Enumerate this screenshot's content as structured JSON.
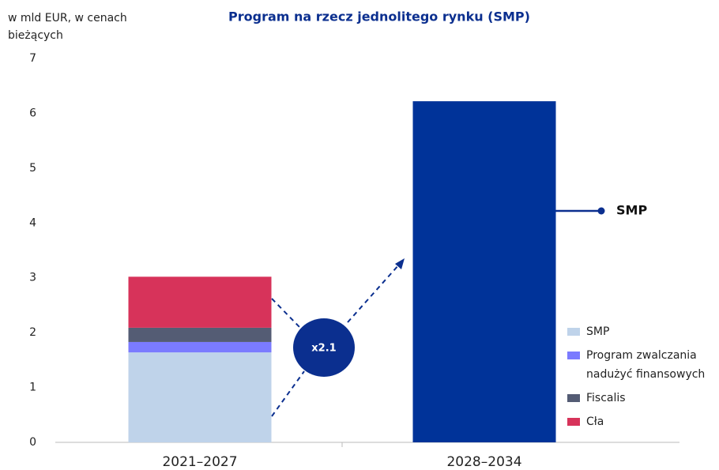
{
  "chart_data": {
    "type": "stacked_bar",
    "title": "Program na rzecz jednolitego rynku (SMP)",
    "y_label": "w mld EUR, w cenach bieżących",
    "categories": [
      "2021–2027",
      "2028–2034"
    ],
    "series": [
      {
        "name": "SMP",
        "colors": [
          "#bfd3ea",
          "#003399"
        ],
        "color": "#bfd3ea",
        "values": [
          1.64,
          6.22
        ]
      },
      {
        "name": "Program zwalczania nadużyć finansowych",
        "color": "#7b7bff",
        "values": [
          0.19,
          null
        ]
      },
      {
        "name": "Fiscalis",
        "color": "#545c74",
        "values": [
          0.26,
          null
        ]
      },
      {
        "name": "Cła",
        "color": "#d7335a",
        "values": [
          0.93,
          null
        ]
      }
    ],
    "ylim": [
      0,
      7
    ],
    "yticks": [
      0,
      1,
      2,
      3,
      4,
      5,
      6,
      7
    ],
    "grid": false,
    "annotations": {
      "ratio": "x2.1"
    }
  }
}
